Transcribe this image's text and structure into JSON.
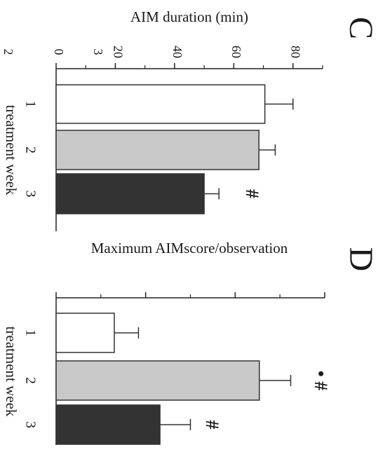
{
  "chart_data": [
    {
      "type": "bar",
      "panel": "C",
      "ylabel": "AIM duration (min)",
      "xlabel": "treatment week",
      "categories": [
        "1",
        "2",
        "3"
      ],
      "values": [
        70.5,
        68.5,
        50
      ],
      "errors": [
        9.5,
        5.5,
        5
      ],
      "yticks": [
        "0",
        "20",
        "40",
        "60",
        "80"
      ],
      "ylim": [
        0,
        90
      ],
      "bar_colors": [
        "#ffffff",
        "#c8c8c8",
        "#333333"
      ],
      "annotations": [
        {
          "category": "3",
          "text": "#"
        }
      ]
    },
    {
      "type": "bar",
      "panel": "D",
      "ylabel": "Maximum  AIMscore/observation",
      "xlabel": "treatment week",
      "categories": [
        "1",
        "2",
        "3"
      ],
      "values": [
        0.65,
        2.27,
        1.16
      ],
      "errors": [
        0.27,
        0.35,
        0.34
      ],
      "yticks": [
        "0",
        "1",
        "2",
        "3"
      ],
      "ylim": [
        0,
        3
      ],
      "bar_colors": [
        "#ffffff",
        "#c8c8c8",
        "#333333"
      ],
      "annotations": [
        {
          "category": "2",
          "text": "• #"
        },
        {
          "category": "3",
          "text": "#"
        }
      ]
    }
  ]
}
